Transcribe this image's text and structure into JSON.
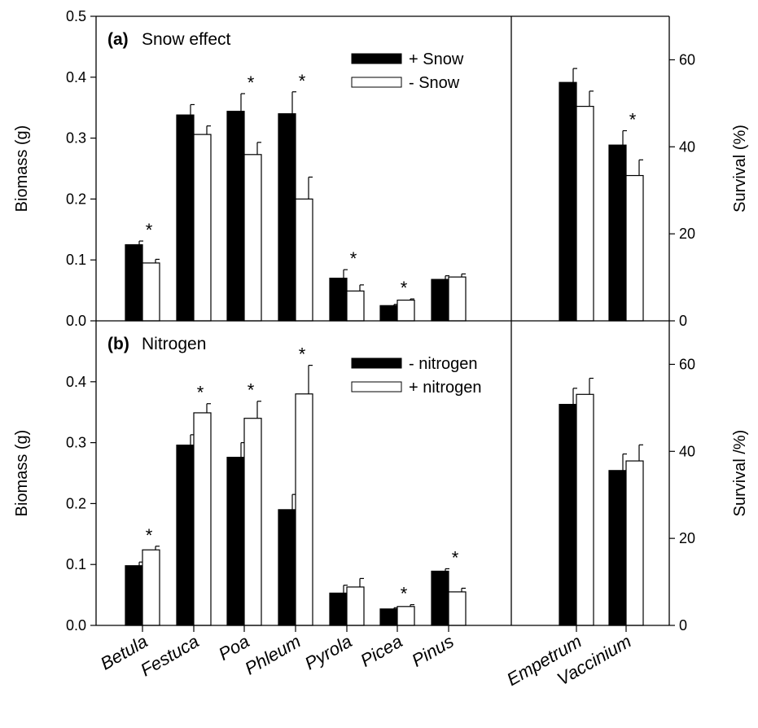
{
  "chart_data": [
    {
      "type": "bar",
      "panel_label": "(a)",
      "title": "Snow effect",
      "ylabel": "Biomass (g)",
      "ylim": [
        0,
        0.5
      ],
      "yticks": [
        "0.0",
        "0.1",
        "0.2",
        "0.3",
        "0.4",
        "0.5"
      ],
      "categories": [
        "Betula",
        "Festuca",
        "Poa",
        "Phleum",
        "Pyrola",
        "Picea",
        "Pinus"
      ],
      "series": [
        {
          "name": "+ Snow",
          "fill": "#000000",
          "values": [
            0.125,
            0.338,
            0.344,
            0.34,
            0.07,
            0.025,
            0.068
          ],
          "errors": [
            0.006,
            0.017,
            0.029,
            0.036,
            0.014,
            0.002,
            0.006
          ]
        },
        {
          "name": "- Snow",
          "fill": "#ffffff",
          "values": [
            0.095,
            0.306,
            0.273,
            0.2,
            0.049,
            0.034,
            0.072
          ],
          "errors": [
            0.006,
            0.014,
            0.02,
            0.036,
            0.01,
            0.002,
            0.005
          ]
        }
      ],
      "significant": [
        1,
        0,
        1,
        1,
        1,
        1,
        0
      ],
      "significance_mark": "*",
      "legend_position": "top-center",
      "right": {
        "ylabel": "Survival (%)",
        "ylim": [
          0,
          70
        ],
        "yticks": [
          "0",
          "20",
          "40",
          "60"
        ],
        "categories": [
          "Empetrum",
          "Vaccinium"
        ],
        "series": [
          {
            "name": "+ Snow",
            "values": [
              54.8,
              40.4
            ],
            "errors": [
              3.2,
              3.3
            ]
          },
          {
            "name": "- Snow",
            "values": [
              49.3,
              33.4
            ],
            "errors": [
              3.5,
              3.6
            ]
          }
        ],
        "significant": [
          0,
          1
        ]
      }
    },
    {
      "type": "bar",
      "panel_label": "(b)",
      "title": "Nitrogen",
      "ylabel": "Biomass (g)",
      "ylim": [
        0,
        0.5
      ],
      "yticks": [
        "0.0",
        "0.1",
        "0.2",
        "0.3",
        "0.4"
      ],
      "categories": [
        "Betula",
        "Festuca",
        "Poa",
        "Phleum",
        "Pyrola",
        "Picea",
        "Pinus"
      ],
      "series": [
        {
          "name": "- nitrogen",
          "fill": "#000000",
          "values": [
            0.098,
            0.296,
            0.276,
            0.19,
            0.053,
            0.027,
            0.089
          ],
          "errors": [
            0.006,
            0.017,
            0.024,
            0.025,
            0.013,
            0.002,
            0.004
          ]
        },
        {
          "name": "+ nitrogen",
          "fill": "#ffffff",
          "values": [
            0.124,
            0.349,
            0.34,
            0.38,
            0.063,
            0.031,
            0.055
          ],
          "errors": [
            0.006,
            0.015,
            0.028,
            0.047,
            0.014,
            0.003,
            0.006
          ]
        }
      ],
      "significant": [
        1,
        1,
        1,
        1,
        0,
        1,
        1
      ],
      "significance_mark": "*",
      "legend_position": "top-center",
      "right": {
        "ylabel": "Survival /%)",
        "ylim": [
          0,
          70
        ],
        "yticks": [
          "0",
          "20",
          "40",
          "60"
        ],
        "categories": [
          "Empetrum",
          "Vaccinium"
        ],
        "series": [
          {
            "name": "- nitrogen",
            "values": [
              50.8,
              35.6
            ],
            "errors": [
              3.7,
              3.8
            ]
          },
          {
            "name": "+ nitrogen",
            "values": [
              53.1,
              37.8
            ],
            "errors": [
              3.7,
              3.7
            ]
          }
        ],
        "significant": [
          0,
          0
        ]
      }
    }
  ]
}
